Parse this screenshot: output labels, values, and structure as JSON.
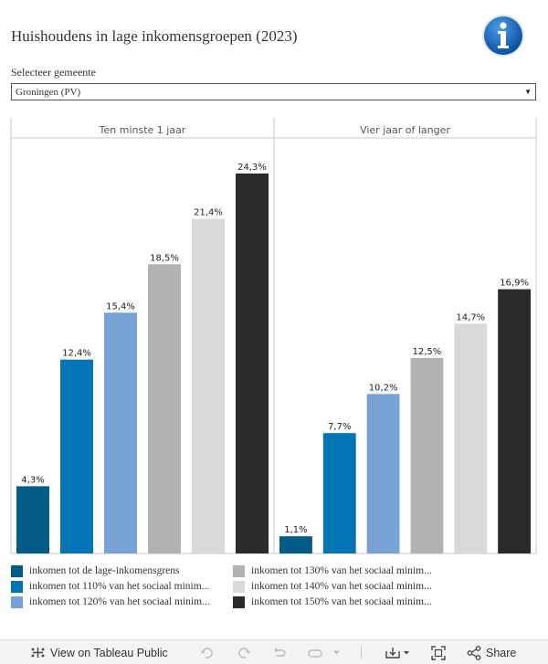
{
  "header": {
    "title": "Huishoudens in lage inkomensgroepen (2023)"
  },
  "filter": {
    "label": "Selecteer gemeente",
    "selected": "Groningen (PV)"
  },
  "icons": {
    "info": "info-icon",
    "dropdown": "chevron-down-icon"
  },
  "chart_data": {
    "type": "bar",
    "panels": [
      "Ten minste 1 jaar",
      "Vier jaar of langer"
    ],
    "series": [
      {
        "name": "inkomen tot de lage-inkomensgrens",
        "color": "#035c86",
        "values": [
          4.3,
          1.1
        ]
      },
      {
        "name": "inkomen tot 110% van het sociaal minim...",
        "color": "#0474b4",
        "values": [
          12.4,
          7.7
        ]
      },
      {
        "name": "inkomen tot 120% van het sociaal minim...",
        "color": "#78a1d6",
        "values": [
          15.4,
          10.2
        ]
      },
      {
        "name": "inkomen tot 130% van het sociaal minim...",
        "color": "#b2b2b2",
        "values": [
          18.5,
          12.5
        ]
      },
      {
        "name": "inkomen tot 140% van het sociaal minim...",
        "color": "#d9d9d9",
        "values": [
          21.4,
          14.7
        ]
      },
      {
        "name": "inkomen tot 150% van het sociaal minim...",
        "color": "#2b2b2b",
        "values": [
          24.3,
          16.9
        ]
      }
    ],
    "data_labels": [
      [
        "4,3%",
        "1,1%"
      ],
      [
        "12,4%",
        "7,7%"
      ],
      [
        "15,4%",
        "10,2%"
      ],
      [
        "18,5%",
        "12,5%"
      ],
      [
        "21,4%",
        "14,7%"
      ],
      [
        "24,3%",
        "16,9%"
      ]
    ],
    "ylim": [
      0,
      25
    ],
    "grid": false,
    "legend": "bottom"
  },
  "toolbar": {
    "view_label": "View on Tableau Public",
    "share_label": "Share",
    "icons": [
      "tableau-logo-icon",
      "undo-icon",
      "redo-icon",
      "revert-icon",
      "chevron-down-icon",
      "download-icon",
      "fullscreen-icon",
      "share-icon"
    ]
  }
}
